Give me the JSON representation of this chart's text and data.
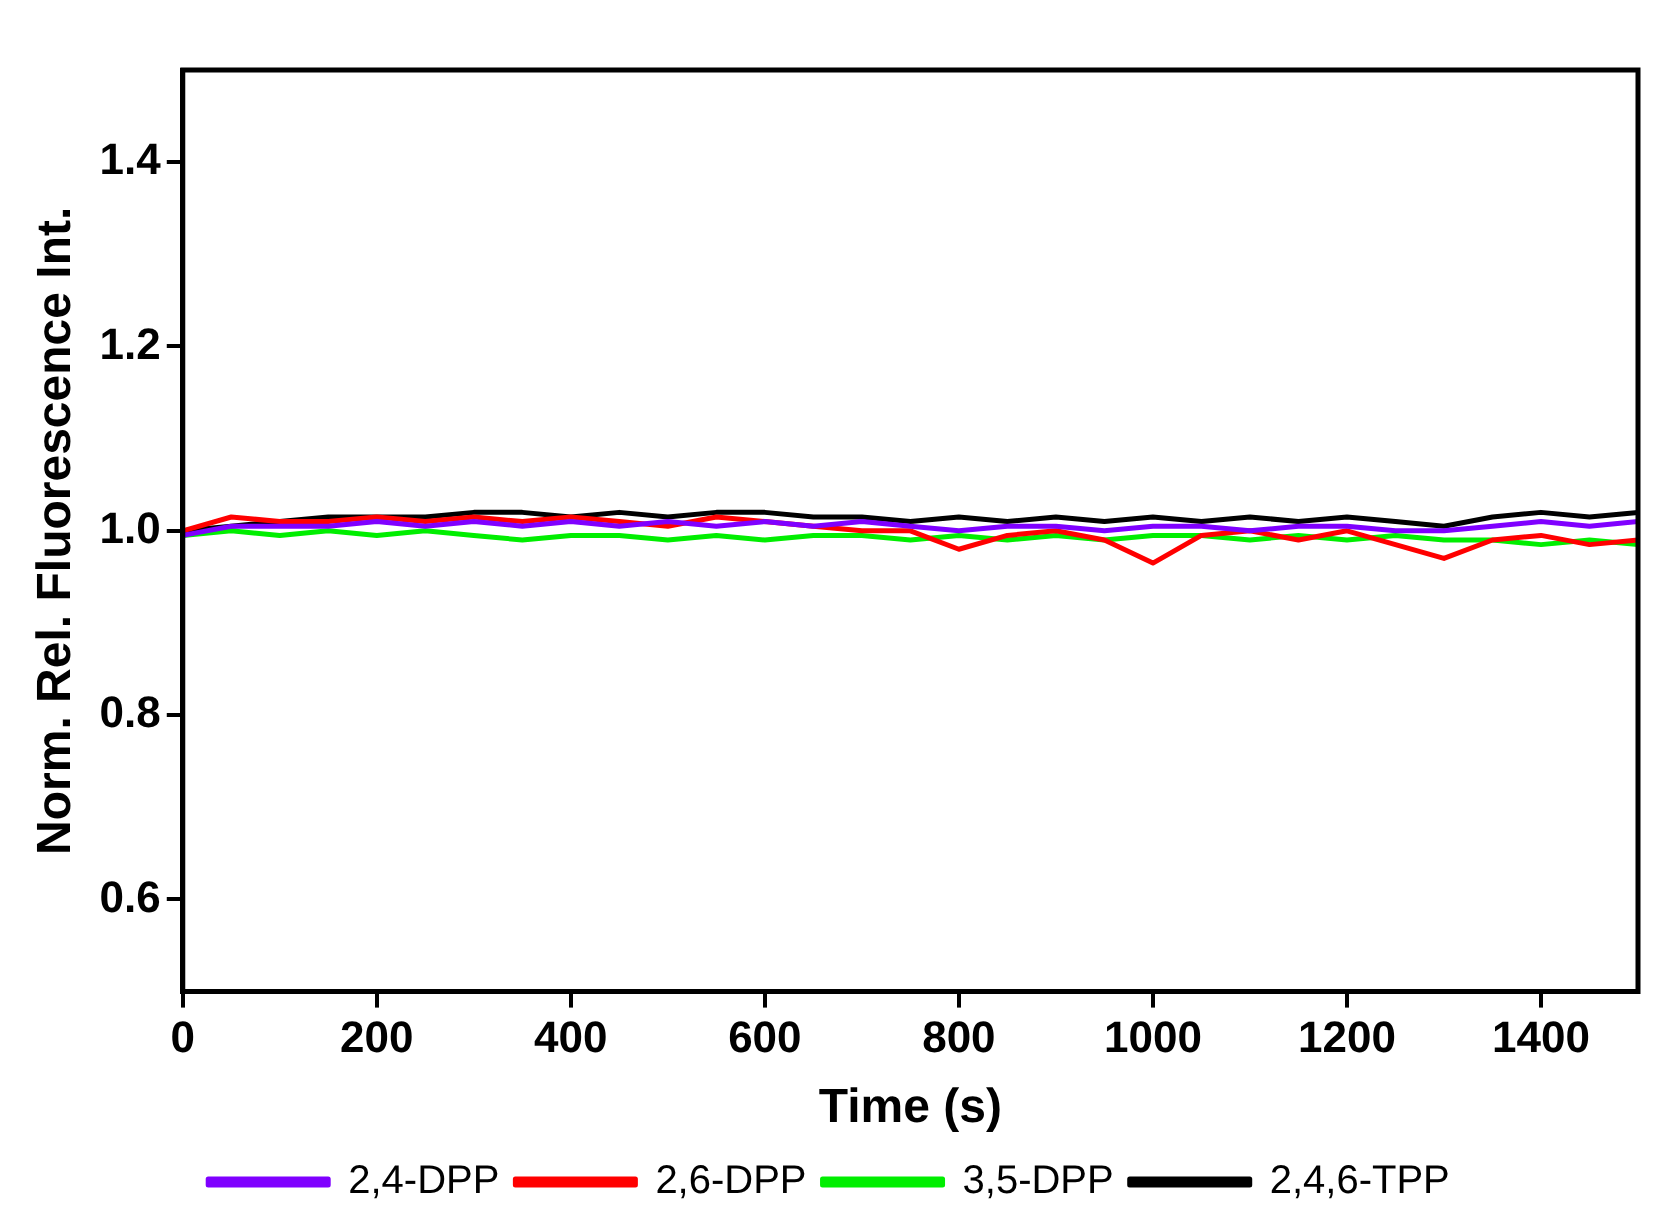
{
  "chart_data": {
    "type": "line",
    "xlabel": "Time (s)",
    "ylabel": "Norm. Rel. Fluorescence Int.",
    "x": [
      0,
      50,
      100,
      150,
      200,
      250,
      300,
      350,
      400,
      450,
      500,
      550,
      600,
      650,
      700,
      750,
      800,
      850,
      900,
      950,
      1000,
      1050,
      1100,
      1150,
      1200,
      1250,
      1300,
      1350,
      1400,
      1450,
      1500
    ],
    "xlim": [
      0,
      1500
    ],
    "xticks": [
      0,
      200,
      400,
      600,
      800,
      1000,
      1200,
      1400
    ],
    "ylim": [
      0.5,
      1.5
    ],
    "yticks": [
      0.6,
      0.8,
      {
        "value": 1,
        "label": "1.0"
      },
      1.2,
      1.4
    ],
    "grid": false,
    "legend": "bottom",
    "marker": "none",
    "line_style": "solid",
    "series": [
      {
        "name": "2,4-DPP",
        "color": "#7f00ff",
        "values": [
          0.995,
          1.005,
          1.005,
          1.005,
          1.01,
          1.005,
          1.01,
          1.005,
          1.01,
          1.005,
          1.01,
          1.005,
          1.01,
          1.005,
          1.01,
          1.005,
          1.0,
          1.005,
          1.005,
          1.0,
          1.005,
          1.005,
          1.0,
          1.005,
          1.005,
          1.0,
          1.0,
          1.005,
          1.01,
          1.005,
          1.01
        ]
      },
      {
        "name": "2,6-DPP",
        "color": "#ff0000",
        "values": [
          1.0,
          1.015,
          1.01,
          1.01,
          1.015,
          1.01,
          1.015,
          1.01,
          1.015,
          1.01,
          1.005,
          1.015,
          1.01,
          1.005,
          1.0,
          1.0,
          0.98,
          0.995,
          1.0,
          0.99,
          0.965,
          0.995,
          1.0,
          0.99,
          1.0,
          0.985,
          0.97,
          0.99,
          0.995,
          0.985,
          0.99
        ]
      },
      {
        "name": "3,5-DPP",
        "color": "#00ee00",
        "values": [
          0.995,
          1.0,
          0.995,
          1.0,
          0.995,
          1.0,
          0.995,
          0.99,
          0.995,
          0.995,
          0.99,
          0.995,
          0.99,
          0.995,
          0.995,
          0.99,
          0.995,
          0.99,
          0.995,
          0.99,
          0.995,
          0.995,
          0.99,
          0.995,
          0.99,
          0.995,
          0.99,
          0.99,
          0.985,
          0.99,
          0.985
        ]
      },
      {
        "name": "2,4,6-TPP",
        "color": "#000000",
        "values": [
          1.0,
          1.005,
          1.01,
          1.015,
          1.015,
          1.015,
          1.02,
          1.02,
          1.015,
          1.02,
          1.015,
          1.02,
          1.02,
          1.015,
          1.015,
          1.01,
          1.015,
          1.01,
          1.015,
          1.01,
          1.015,
          1.01,
          1.015,
          1.01,
          1.015,
          1.01,
          1.005,
          1.015,
          1.02,
          1.015,
          1.02
        ]
      }
    ]
  }
}
